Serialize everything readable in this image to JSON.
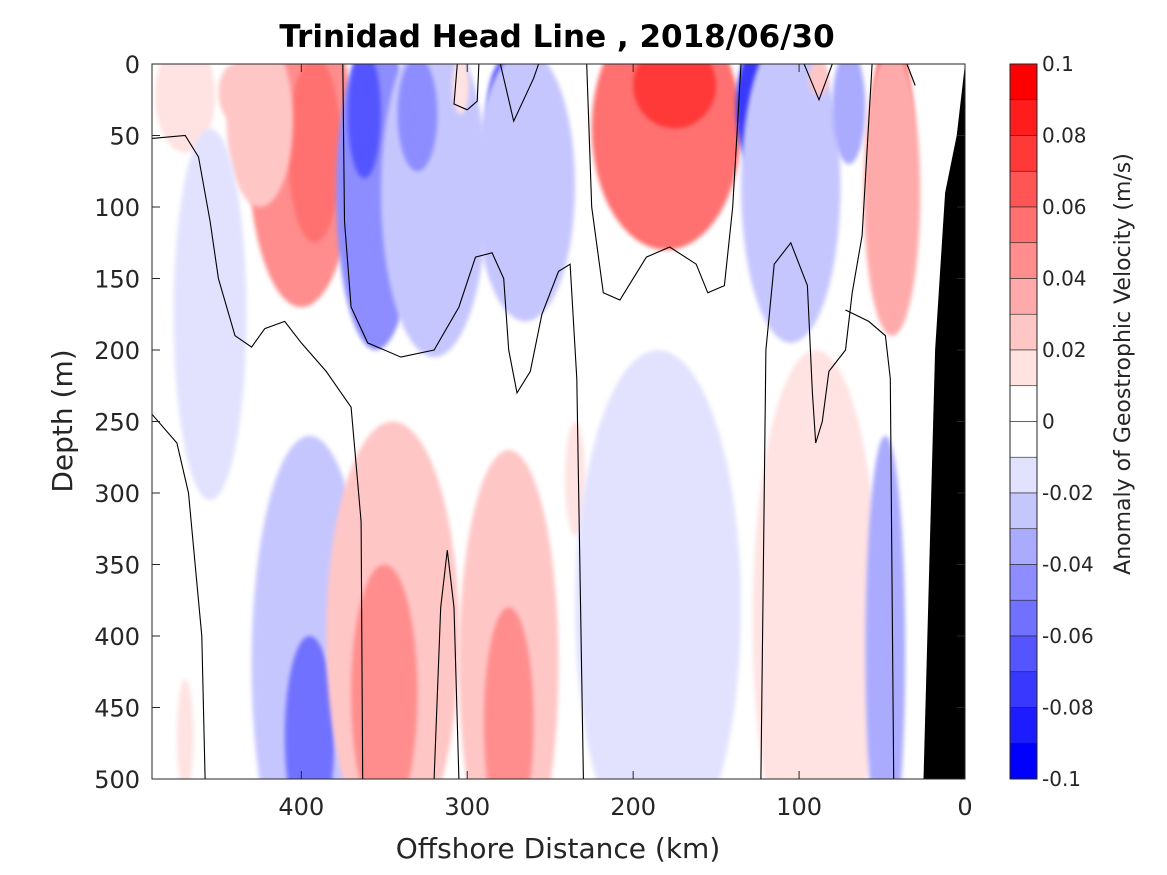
{
  "chart_data": {
    "type": "heatmap",
    "title": "Trinidad Head Line , 2018/06/30",
    "xlabel": "Offshore Distance (km)",
    "ylabel": "Depth (m)",
    "xlim": [
      490,
      0
    ],
    "ylim": [
      0,
      500
    ],
    "x_reversed": true,
    "y_reversed": true,
    "xticks": [
      400,
      300,
      200,
      100,
      0
    ],
    "xtick_labels": [
      "400",
      "300",
      "200",
      "100",
      "0"
    ],
    "yticks": [
      0,
      50,
      100,
      150,
      200,
      250,
      300,
      350,
      400,
      450,
      500
    ],
    "ytick_labels": [
      "0",
      "50",
      "100",
      "150",
      "200",
      "250",
      "300",
      "350",
      "400",
      "450",
      "500"
    ],
    "colorbar": {
      "label": "Anomaly of Geostrophic Velocity (m/s)",
      "levels": [
        0.1,
        0.09,
        0.08,
        0.07,
        0.06,
        0.05,
        0.04,
        0.03,
        0.02,
        0.01,
        0,
        -0.01,
        -0.02,
        -0.03,
        -0.04,
        -0.05,
        -0.06,
        -0.07,
        -0.08,
        -0.09,
        -0.1
      ],
      "tick_values": [
        0.1,
        0.08,
        0.06,
        0.04,
        0.02,
        0,
        -0.02,
        -0.04,
        -0.06,
        -0.08,
        -0.1
      ],
      "tick_labels": [
        "0.1",
        "0.08",
        "0.06",
        "0.04",
        "0.02",
        "0",
        "-0.02",
        "-0.04",
        "-0.06",
        "-0.08",
        "-0.1"
      ],
      "colors": {
        "positive": [
          "#ff0000",
          "#ff1c1c",
          "#ff3838",
          "#ff5555",
          "#ff7171",
          "#ff8d8d",
          "#ffaaaa",
          "#ffc6c6",
          "#ffe2e2"
        ],
        "zero": "#ffffff",
        "negative": [
          "#e2e2ff",
          "#c6c6ff",
          "#aaaaff",
          "#8d8dff",
          "#7171ff",
          "#5555ff",
          "#3838ff",
          "#1c1cff",
          "#0000ff"
        ]
      }
    },
    "bathymetry": {
      "color": "#000000",
      "bottom_depth_by_distance": [
        [
          0,
          0
        ],
        [
          5,
          50
        ],
        [
          12,
          90
        ],
        [
          18,
          200
        ],
        [
          25,
          500
        ]
      ]
    },
    "blobs": [
      {
        "x": 470,
        "y": 22,
        "rx": 18,
        "ry": 40,
        "v": 0.01
      },
      {
        "x": 400,
        "y": 60,
        "rx": 32,
        "ry": 110,
        "v": 0.045
      },
      {
        "x": 392,
        "y": 60,
        "rx": 16,
        "ry": 65,
        "v": 0.055
      },
      {
        "x": 425,
        "y": 40,
        "rx": 20,
        "ry": 60,
        "v": 0.02
      },
      {
        "x": 440,
        "y": 20,
        "rx": 10,
        "ry": 20,
        "v": 0.02
      },
      {
        "x": 355,
        "y": 90,
        "rx": 24,
        "ry": 110,
        "v": -0.04
      },
      {
        "x": 362,
        "y": 35,
        "rx": 10,
        "ry": 45,
        "v": -0.06
      },
      {
        "x": 320,
        "y": 90,
        "rx": 32,
        "ry": 115,
        "v": -0.025
      },
      {
        "x": 330,
        "y": 35,
        "rx": 12,
        "ry": 40,
        "v": -0.04
      },
      {
        "x": 304,
        "y": 15,
        "rx": 5,
        "ry": 20,
        "v": 0.01
      },
      {
        "x": 270,
        "y": 30,
        "rx": 18,
        "ry": 40,
        "v": -0.06
      },
      {
        "x": 265,
        "y": 85,
        "rx": 30,
        "ry": 95,
        "v": -0.025
      },
      {
        "x": 455,
        "y": 175,
        "rx": 22,
        "ry": 130,
        "v": -0.01
      },
      {
        "x": 180,
        "y": 45,
        "rx": 45,
        "ry": 85,
        "v": 0.05
      },
      {
        "x": 175,
        "y": 15,
        "rx": 25,
        "ry": 30,
        "v": 0.07
      },
      {
        "x": 120,
        "y": 30,
        "rx": 18,
        "ry": 50,
        "v": -0.07
      },
      {
        "x": 105,
        "y": 85,
        "rx": 30,
        "ry": 110,
        "v": -0.025
      },
      {
        "x": 88,
        "y": 10,
        "rx": 6,
        "ry": 12,
        "v": 0.02
      },
      {
        "x": 70,
        "y": 30,
        "rx": 10,
        "ry": 40,
        "v": -0.03
      },
      {
        "x": 44,
        "y": 55,
        "rx": 13,
        "ry": 75,
        "v": 0.06
      },
      {
        "x": 44,
        "y": 90,
        "rx": 17,
        "ry": 100,
        "v": 0.03
      },
      {
        "x": 395,
        "y": 420,
        "rx": 35,
        "ry": 160,
        "v": -0.025
      },
      {
        "x": 395,
        "y": 470,
        "rx": 15,
        "ry": 70,
        "v": -0.05
      },
      {
        "x": 345,
        "y": 400,
        "rx": 40,
        "ry": 150,
        "v": 0.025
      },
      {
        "x": 350,
        "y": 440,
        "rx": 20,
        "ry": 90,
        "v": 0.045
      },
      {
        "x": 275,
        "y": 420,
        "rx": 30,
        "ry": 150,
        "v": 0.02
      },
      {
        "x": 275,
        "y": 460,
        "rx": 15,
        "ry": 80,
        "v": 0.04
      },
      {
        "x": 235,
        "y": 290,
        "rx": 6,
        "ry": 40,
        "v": 0.01
      },
      {
        "x": 185,
        "y": 380,
        "rx": 50,
        "ry": 180,
        "v": -0.012
      },
      {
        "x": 90,
        "y": 390,
        "rx": 38,
        "ry": 190,
        "v": 0.012
      },
      {
        "x": 48,
        "y": 410,
        "rx": 12,
        "ry": 150,
        "v": -0.03
      },
      {
        "x": 470,
        "y": 470,
        "rx": 5,
        "ry": 40,
        "v": 0.01
      }
    ],
    "zero_contours": [
      [
        [
          490,
          52
        ],
        [
          470,
          50
        ],
        [
          462,
          65
        ],
        [
          455,
          110
        ],
        [
          450,
          150
        ],
        [
          440,
          190
        ],
        [
          430,
          198
        ],
        [
          422,
          185
        ],
        [
          410,
          180
        ],
        [
          400,
          195
        ],
        [
          385,
          215
        ],
        [
          370,
          240
        ],
        [
          364,
          320
        ],
        [
          363,
          500
        ]
      ],
      [
        [
          490,
          245
        ],
        [
          475,
          265
        ],
        [
          468,
          300
        ],
        [
          460,
          400
        ],
        [
          458,
          500
        ]
      ],
      [
        [
          375,
          0
        ],
        [
          374,
          110
        ],
        [
          370,
          170
        ],
        [
          360,
          195
        ],
        [
          340,
          205
        ],
        [
          320,
          200
        ],
        [
          305,
          170
        ],
        [
          295,
          135
        ],
        [
          285,
          132
        ],
        [
          278,
          150
        ],
        [
          275,
          200
        ],
        [
          270,
          230
        ],
        [
          262,
          215
        ],
        [
          255,
          175
        ],
        [
          245,
          145
        ],
        [
          238,
          140
        ],
        [
          234,
          220
        ],
        [
          230,
          500
        ]
      ],
      [
        [
          320,
          500
        ],
        [
          316,
          380
        ],
        [
          312,
          340
        ],
        [
          308,
          380
        ],
        [
          305,
          500
        ]
      ],
      [
        [
          306,
          0
        ],
        [
          308,
          28
        ],
        [
          300,
          32
        ],
        [
          294,
          26
        ],
        [
          293,
          0
        ]
      ],
      [
        [
          280,
          0
        ],
        [
          272,
          40
        ],
        [
          260,
          10
        ],
        [
          257,
          0
        ]
      ],
      [
        [
          228,
          0
        ],
        [
          225,
          100
        ],
        [
          218,
          160
        ],
        [
          208,
          165
        ],
        [
          192,
          135
        ],
        [
          178,
          128
        ],
        [
          162,
          140
        ],
        [
          155,
          160
        ],
        [
          145,
          155
        ],
        [
          140,
          100
        ],
        [
          136,
          20
        ],
        [
          135,
          0
        ]
      ],
      [
        [
          123,
          500
        ],
        [
          120,
          200
        ],
        [
          115,
          140
        ],
        [
          105,
          125
        ],
        [
          95,
          155
        ],
        [
          92,
          230
        ],
        [
          90,
          265
        ],
        [
          86,
          250
        ],
        [
          82,
          215
        ],
        [
          72,
          200
        ],
        [
          68,
          160
        ],
        [
          62,
          120
        ],
        [
          56,
          0
        ]
      ],
      [
        [
          43,
          500
        ],
        [
          45,
          220
        ],
        [
          48,
          190
        ],
        [
          58,
          180
        ],
        [
          72,
          172
        ]
      ],
      [
        [
          97,
          0
        ],
        [
          88,
          25
        ],
        [
          80,
          0
        ]
      ],
      [
        [
          30,
          15
        ],
        [
          35,
          0
        ]
      ]
    ]
  }
}
